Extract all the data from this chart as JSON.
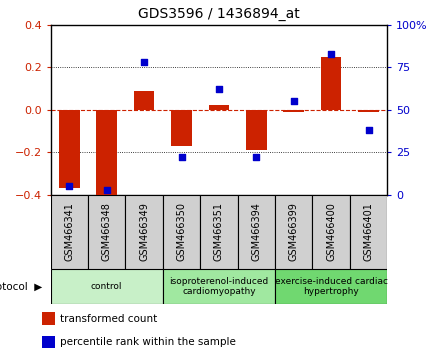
{
  "title": "GDS3596 / 1436894_at",
  "samples": [
    "GSM466341",
    "GSM466348",
    "GSM466349",
    "GSM466350",
    "GSM466351",
    "GSM466394",
    "GSM466399",
    "GSM466400",
    "GSM466401"
  ],
  "transformed_counts": [
    -0.37,
    -0.41,
    0.09,
    -0.17,
    0.02,
    -0.19,
    -0.01,
    0.25,
    -0.01
  ],
  "percentile_ranks": [
    5,
    3,
    78,
    22,
    62,
    22,
    55,
    83,
    38
  ],
  "groups": [
    {
      "label": "control",
      "start": 0,
      "end": 3,
      "color": "#c8f0c8"
    },
    {
      "label": "isoproterenol-induced\ncardiomyopathy",
      "start": 3,
      "end": 6,
      "color": "#a0e8a0"
    },
    {
      "label": "exercise-induced cardiac\nhypertrophy",
      "start": 6,
      "end": 9,
      "color": "#70d870"
    }
  ],
  "ylim_left": [
    -0.4,
    0.4
  ],
  "ylim_right": [
    0,
    100
  ],
  "yticks_left": [
    -0.4,
    -0.2,
    0.0,
    0.2,
    0.4
  ],
  "yticks_right": [
    0,
    25,
    50,
    75,
    100
  ],
  "bar_color": "#cc2200",
  "dot_color": "#0000cc",
  "zero_line_color": "#cc2200",
  "sample_box_color": "#d0d0d0",
  "legend_items": [
    "transformed count",
    "percentile rank within the sample"
  ],
  "fig_width": 4.4,
  "fig_height": 3.54,
  "dpi": 100
}
